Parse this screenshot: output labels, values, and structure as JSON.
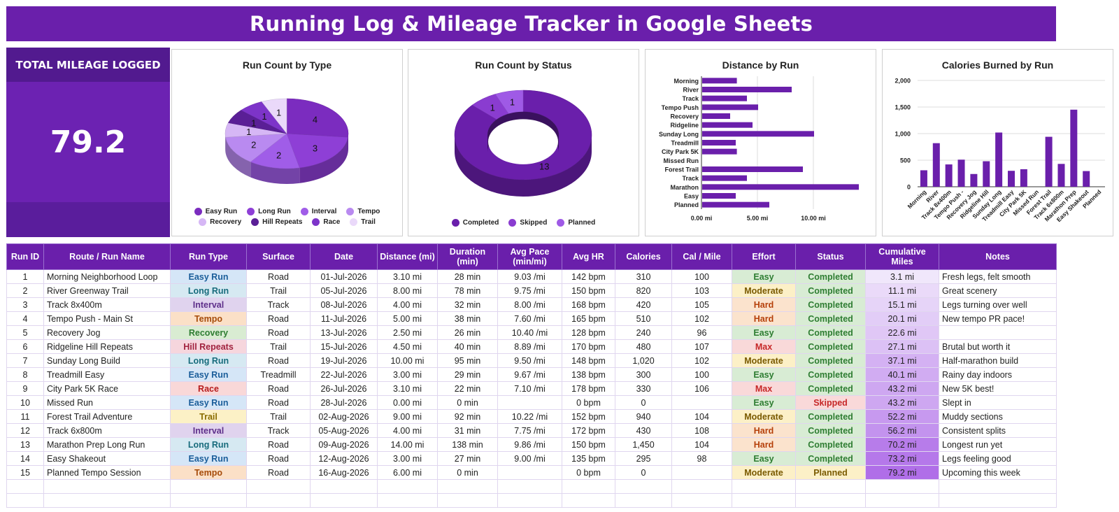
{
  "title": "Running Log & Mileage Tracker in Google Sheets",
  "kpi": {
    "label": "TOTAL MILEAGE LOGGED",
    "value": "79.2"
  },
  "colors": {
    "brand": "#6a1fab",
    "easy_bg": "#d5e6f7",
    "easy_fg": "#1b5e9a",
    "long_bg": "#d6e9f2",
    "long_fg": "#176b7c",
    "interval_bg": "#e0d3ee",
    "interval_fg": "#5e2f8a",
    "tempo_bg": "#fbe0c7",
    "tempo_fg": "#a64b0a",
    "recovery_bg": "#d9ecd2",
    "recovery_fg": "#2e7d32",
    "hill_bg": "#f6d6dd",
    "hill_fg": "#a1233f",
    "race_bg": "#f9d8d8",
    "race_fg": "#b71c1c",
    "trail_bg": "#fcf1c6",
    "trail_fg": "#8a6d00",
    "effort_easy_bg": "#d8ecd4",
    "effort_easy_fg": "#2e7d32",
    "effort_moderate_bg": "#fcf0c7",
    "effort_moderate_fg": "#7a5a00",
    "effort_hard_bg": "#fbe3cd",
    "effort_hard_fg": "#b5400a",
    "effort_max_bg": "#f9d9d9",
    "effort_max_fg": "#c62828",
    "status_completed_bg": "#d8ecd4",
    "status_completed_fg": "#2e7d32",
    "status_skipped_bg": "#f9d9d9",
    "status_skipped_fg": "#c62828",
    "status_planned_bg": "#fcf0c7",
    "status_planned_fg": "#7a5a00"
  },
  "chart_data": [
    {
      "type": "pie",
      "title": "Run Count by Type",
      "categories": [
        "Easy Run",
        "Long Run",
        "Interval",
        "Tempo",
        "Recovery",
        "Hill Repeats",
        "Race",
        "Trail"
      ],
      "values": [
        4,
        3,
        2,
        2,
        1,
        1,
        1,
        1
      ],
      "colors": [
        "#7b2cbf",
        "#8e3fd6",
        "#a05de8",
        "#b98af0",
        "#d6b7f5",
        "#5a1f96",
        "#7d34c9",
        "#ead9fa"
      ],
      "legend": "bottom"
    },
    {
      "type": "pie",
      "title": "Run Count by Status",
      "categories": [
        "Completed",
        "Skipped",
        "Planned"
      ],
      "values": [
        13,
        1,
        1
      ],
      "colors": [
        "#6a1fab",
        "#8a3cd0",
        "#9f5ae6"
      ],
      "legend": "bottom"
    },
    {
      "type": "bar",
      "title": "Distance by Run",
      "orientation": "horizontal",
      "categories": [
        "Morning",
        "River",
        "Track",
        "Tempo Push",
        "Recovery",
        "Ridgeline",
        "Sunday Long",
        "Treadmill",
        "City Park 5K",
        "Missed Run",
        "Forest Trail",
        "Track",
        "Marathon",
        "Easy",
        "Planned"
      ],
      "values": [
        3.1,
        8.0,
        4.0,
        5.0,
        2.5,
        4.5,
        10.0,
        3.0,
        3.1,
        0,
        9.0,
        4.0,
        14.0,
        3.0,
        6.0
      ],
      "xlim": [
        0,
        15
      ],
      "tick_labels": [
        "0.00 mi",
        "5.00 mi",
        "10.00 mi"
      ],
      "tick_values": [
        0,
        5,
        10
      ]
    },
    {
      "type": "bar",
      "title": "Calories Burned by Run",
      "categories": [
        "Morning",
        "River",
        "Track 8x400m",
        "Tempo Push -",
        "Recovery Jog",
        "Ridgeline Hill",
        "Sunday Long",
        "Treadmill Easy",
        "City Park 5K",
        "Missed Run",
        "Forest Trail",
        "Track 6x800m",
        "Marathon Prep",
        "Easy Shakeout",
        "Planned"
      ],
      "values": [
        310,
        820,
        420,
        510,
        240,
        480,
        1020,
        300,
        330,
        0,
        940,
        430,
        1450,
        295,
        0
      ],
      "ylim": [
        0,
        2000
      ],
      "tick_labels": [
        "0",
        "500",
        "1,000",
        "1,500",
        "2,000"
      ],
      "tick_values": [
        0,
        500,
        1000,
        1500,
        2000
      ]
    }
  ],
  "table": {
    "headers": [
      "Run ID",
      "Route / Run Name",
      "Run Type",
      "Surface",
      "Date",
      "Distance (mi)",
      "Duration (min)",
      "Avg Pace (min/mi)",
      "Avg HR",
      "Calories",
      "Cal / Mile",
      "Effort",
      "Status",
      "Cumulative Miles",
      "Notes"
    ],
    "rows": [
      [
        "1",
        "Morning Neighborhood Loop",
        "Easy Run",
        "Road",
        "01-Jul-2026",
        "3.10 mi",
        "28 min",
        "9.03 /mi",
        "142 bpm",
        "310",
        "100",
        "Easy",
        "Completed",
        "3.1 mi",
        "Fresh legs, felt smooth"
      ],
      [
        "2",
        "River Greenway Trail",
        "Long Run",
        "Trail",
        "05-Jul-2026",
        "8.00 mi",
        "78 min",
        "9.75 /mi",
        "150 bpm",
        "820",
        "103",
        "Moderate",
        "Completed",
        "11.1 mi",
        "Great scenery"
      ],
      [
        "3",
        "Track 8x400m",
        "Interval",
        "Track",
        "08-Jul-2026",
        "4.00 mi",
        "32 min",
        "8.00 /mi",
        "168 bpm",
        "420",
        "105",
        "Hard",
        "Completed",
        "15.1 mi",
        "Legs turning over well"
      ],
      [
        "4",
        "Tempo Push - Main St",
        "Tempo",
        "Road",
        "11-Jul-2026",
        "5.00 mi",
        "38 min",
        "7.60 /mi",
        "165 bpm",
        "510",
        "102",
        "Hard",
        "Completed",
        "20.1 mi",
        "New tempo PR pace!"
      ],
      [
        "5",
        "Recovery Jog",
        "Recovery",
        "Road",
        "13-Jul-2026",
        "2.50 mi",
        "26 min",
        "10.40 /mi",
        "128 bpm",
        "240",
        "96",
        "Easy",
        "Completed",
        "22.6 mi",
        ""
      ],
      [
        "6",
        "Ridgeline Hill Repeats",
        "Hill Repeats",
        "Trail",
        "15-Jul-2026",
        "4.50 mi",
        "40 min",
        "8.89 /mi",
        "170 bpm",
        "480",
        "107",
        "Max",
        "Completed",
        "27.1 mi",
        "Brutal but worth it"
      ],
      [
        "7",
        "Sunday Long Build",
        "Long Run",
        "Road",
        "19-Jul-2026",
        "10.00 mi",
        "95 min",
        "9.50 /mi",
        "148 bpm",
        "1,020",
        "102",
        "Moderate",
        "Completed",
        "37.1 mi",
        "Half-marathon build"
      ],
      [
        "8",
        "Treadmill Easy",
        "Easy Run",
        "Treadmill",
        "22-Jul-2026",
        "3.00 mi",
        "29 min",
        "9.67 /mi",
        "138 bpm",
        "300",
        "100",
        "Easy",
        "Completed",
        "40.1 mi",
        "Rainy day indoors"
      ],
      [
        "9",
        "City Park 5K Race",
        "Race",
        "Road",
        "26-Jul-2026",
        "3.10 mi",
        "22 min",
        "7.10 /mi",
        "178 bpm",
        "330",
        "106",
        "Max",
        "Completed",
        "43.2 mi",
        "New 5K best!"
      ],
      [
        "10",
        "Missed Run",
        "Easy Run",
        "Road",
        "28-Jul-2026",
        "0.00 mi",
        "0 min",
        "",
        "0 bpm",
        "0",
        "",
        "Easy",
        "Skipped",
        "43.2 mi",
        "Slept in"
      ],
      [
        "11",
        "Forest Trail Adventure",
        "Trail",
        "Trail",
        "02-Aug-2026",
        "9.00 mi",
        "92 min",
        "10.22 /mi",
        "152 bpm",
        "940",
        "104",
        "Moderate",
        "Completed",
        "52.2 mi",
        "Muddy sections"
      ],
      [
        "12",
        "Track 6x800m",
        "Interval",
        "Track",
        "05-Aug-2026",
        "4.00 mi",
        "31 min",
        "7.75 /mi",
        "172 bpm",
        "430",
        "108",
        "Hard",
        "Completed",
        "56.2 mi",
        "Consistent splits"
      ],
      [
        "13",
        "Marathon Prep Long Run",
        "Long Run",
        "Road",
        "09-Aug-2026",
        "14.00 mi",
        "138 min",
        "9.86 /mi",
        "150 bpm",
        "1,450",
        "104",
        "Hard",
        "Completed",
        "70.2 mi",
        "Longest run yet"
      ],
      [
        "14",
        "Easy Shakeout",
        "Easy Run",
        "Road",
        "12-Aug-2026",
        "3.00 mi",
        "27 min",
        "9.00 /mi",
        "135 bpm",
        "295",
        "98",
        "Easy",
        "Completed",
        "73.2 mi",
        "Legs feeling good"
      ],
      [
        "15",
        "Planned Tempo Session",
        "Tempo",
        "Road",
        "16-Aug-2026",
        "6.00 mi",
        "0 min",
        "",
        "0 bpm",
        "0",
        "",
        "Moderate",
        "Planned",
        "79.2 mi",
        "Upcoming this week"
      ]
    ],
    "cumulative_fraction": [
      0.04,
      0.14,
      0.19,
      0.25,
      0.29,
      0.34,
      0.47,
      0.51,
      0.55,
      0.55,
      0.66,
      0.71,
      0.89,
      0.92,
      1.0
    ]
  }
}
